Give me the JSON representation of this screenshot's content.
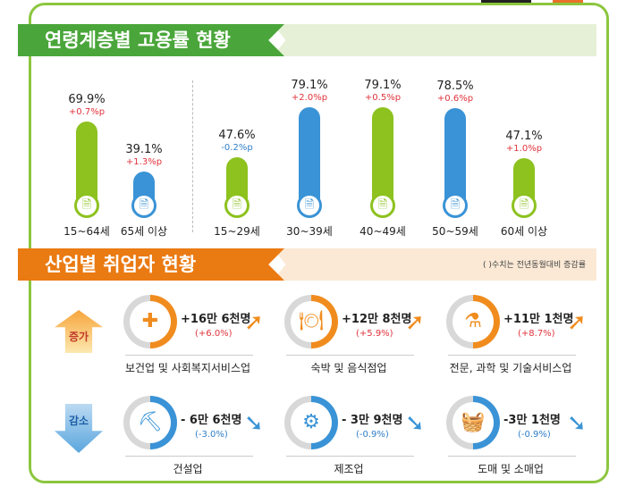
{
  "section1": {
    "title": "연령계층별 고용률 현황"
  },
  "chart_data": {
    "type": "bar",
    "categories": [
      "15~64세",
      "65세 이상",
      "15~29세",
      "30~39세",
      "40~49세",
      "50~59세",
      "60세 이상"
    ],
    "values": [
      69.9,
      39.1,
      47.6,
      79.1,
      79.1,
      78.5,
      47.1
    ],
    "value_labels": [
      "69.9%",
      "39.1%",
      "47.6%",
      "79.1%",
      "79.1%",
      "78.5%",
      "47.1%"
    ],
    "changes": [
      "+0.7%p",
      "+1.3%p",
      "-0.2%p",
      "+2.0%p",
      "+0.5%p",
      "+0.6%p",
      "+1.0%p"
    ],
    "bar_colors": [
      "#8dc21f",
      "#3a93d6",
      "#8dc21f",
      "#3a93d6",
      "#8dc21f",
      "#3a93d6",
      "#8dc21f"
    ],
    "unit": "%"
  },
  "section2": {
    "title": "산업별 취업자 현황",
    "note": "( )수치는 전년동월대비 증감률",
    "increase_label": "증가",
    "decrease_label": "감소",
    "increase": [
      {
        "icon": "medical-kit-icon",
        "value": "+16만 6천명",
        "pct": "(+6.0%)",
        "label": "보건업 및 사회복지서비스업"
      },
      {
        "icon": "dining-icon",
        "value": "+12만 8천명",
        "pct": "(+5.9%)",
        "label": "숙박 및 음식점업"
      },
      {
        "icon": "flask-icon",
        "value": "+11만 1천명",
        "pct": "(+8.7%)",
        "label": "전문, 과학 및 기술서비스업"
      }
    ],
    "decrease": [
      {
        "icon": "excavator-icon",
        "value": "- 6만 6천명",
        "pct": "(-3.0%)",
        "label": "건설업"
      },
      {
        "icon": "gear-icon",
        "value": "- 3만 9천명",
        "pct": "(-0.9%)",
        "label": "제조업"
      },
      {
        "icon": "basket-icon",
        "value": "-3만 1천명",
        "pct": "(-0.9%)",
        "label": "도매 및 소매업"
      }
    ]
  },
  "colors": {
    "green": "#8dc21f",
    "blue": "#3a93d6",
    "orange": "#f08c1e",
    "red": "#e0333c",
    "banner_green": "#4aa63a",
    "banner_orange": "#ea7a12"
  }
}
